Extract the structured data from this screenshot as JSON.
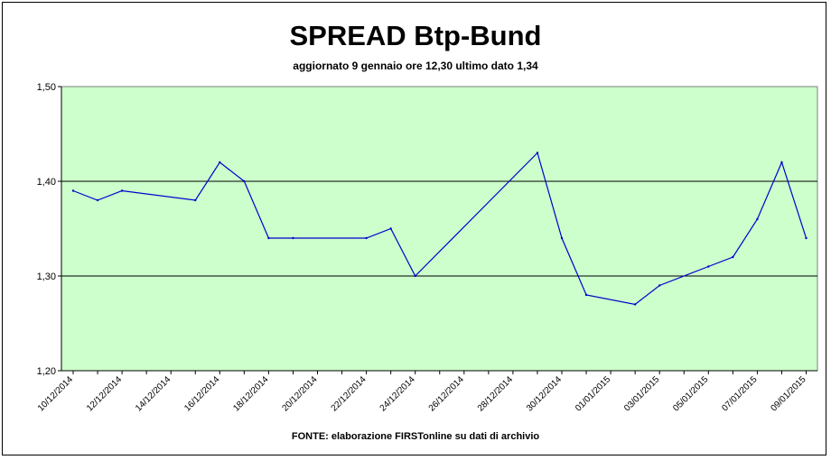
{
  "chart_data": {
    "type": "line",
    "title": "SPREAD Btp-Bund",
    "subtitle": "aggiornato 9 gennaio ore 12,30  ultimo dato  1,34",
    "source": "FONTE: elaborazione FIRSTonline su dati di archivio",
    "xlabel": "",
    "ylabel": "",
    "ylim": [
      1.2,
      1.5
    ],
    "yticks": [
      "1,20",
      "1,30",
      "1,40",
      "1,50"
    ],
    "xtick_labels": [
      "10/12/2014",
      "12/12/2014",
      "14/12/2014",
      "16/12/2014",
      "18/12/2014",
      "20/12/2014",
      "22/12/2014",
      "24/12/2014",
      "26/12/2014",
      "28/12/2014",
      "30/12/2014",
      "01/01/2015",
      "03/01/2015",
      "05/01/2015",
      "07/01/2015",
      "09/01/2015"
    ],
    "grid": "horizontal",
    "plot_background": "#ccffcc",
    "line_color": "#0000cc",
    "series": [
      {
        "x": [
          "10/12/2014",
          "11/12/2014",
          "12/12/2014",
          "15/12/2014",
          "16/12/2014",
          "17/12/2014",
          "18/12/2014",
          "19/12/2014",
          "22/12/2014",
          "23/12/2014",
          "24/12/2014",
          "29/12/2014",
          "30/12/2014",
          "31/12/2014",
          "02/01/2015",
          "03/01/2015",
          "05/01/2015",
          "06/01/2015",
          "07/01/2015",
          "08/01/2015",
          "09/01/2015"
        ],
        "values": [
          1.39,
          1.38,
          1.39,
          1.38,
          1.42,
          1.4,
          1.34,
          1.34,
          1.34,
          1.35,
          1.3,
          1.43,
          1.34,
          1.28,
          1.27,
          1.29,
          1.31,
          1.32,
          1.36,
          1.42,
          1.34
        ]
      }
    ]
  }
}
